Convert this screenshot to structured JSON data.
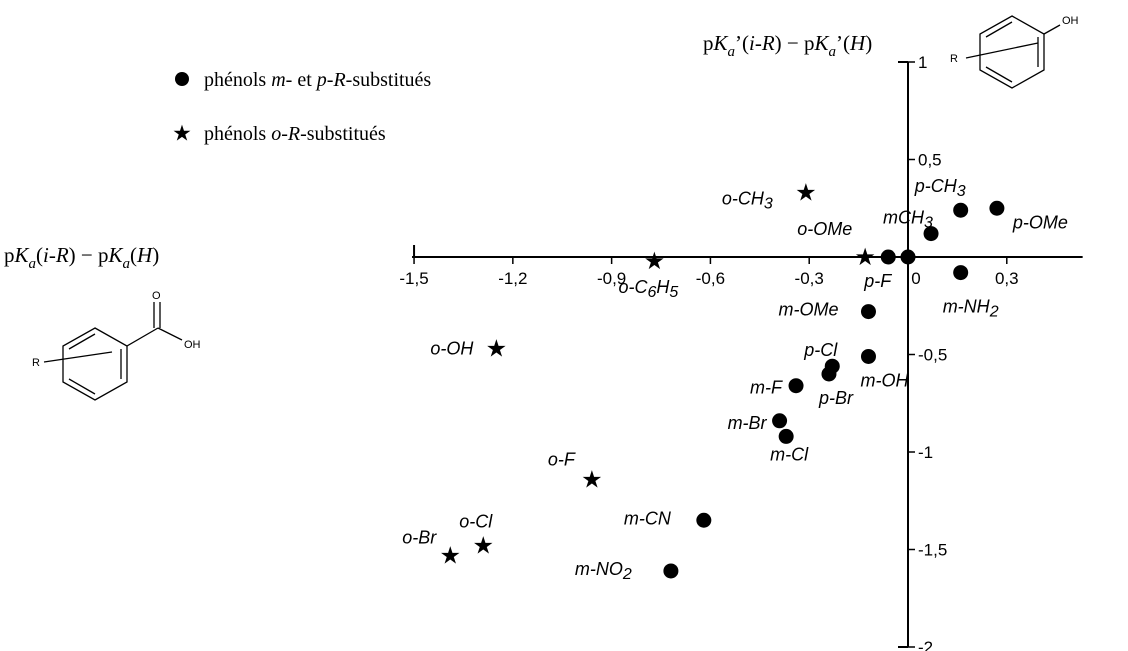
{
  "chart_data": {
    "type": "scatter",
    "title": "",
    "xlabel": "pKa(i-R) − pKa(H)",
    "ylabel": "pKa'(i-R) − pKa'(H)",
    "xlim": [
      -1.5,
      0.5
    ],
    "ylim": [
      -2,
      1
    ],
    "x_ticks": [
      "-1,5",
      "-1,2",
      "-0,9",
      "-0,6",
      "-0,3",
      "0",
      "0,3"
    ],
    "y_ticks": [
      "1",
      "0,5",
      "0",
      "-0,5",
      "-1",
      "-1,5",
      "-2"
    ],
    "legend": {
      "position": "top-left",
      "entries": [
        {
          "marker": "circle",
          "label": "phénols m- et p-R-substitués"
        },
        {
          "marker": "star",
          "label": "phénols o-R-substitués"
        }
      ]
    },
    "series": [
      {
        "name": "phénols m- et p-R-substitués",
        "marker": "circle",
        "points": [
          {
            "label": "p-OMe",
            "x": 0.27,
            "y": 0.25
          },
          {
            "label": "p-CH3",
            "x": 0.16,
            "y": 0.24
          },
          {
            "label": "mCH3",
            "x": 0.07,
            "y": 0.12
          },
          {
            "label": "m-NH2",
            "x": 0.16,
            "y": -0.08
          },
          {
            "label": "0",
            "x": 0.0,
            "y": 0.0
          },
          {
            "label": "p-F",
            "x": -0.06,
            "y": 0.0
          },
          {
            "label": "m-OMe",
            "x": -0.12,
            "y": -0.28
          },
          {
            "label": "m-OH",
            "x": -0.12,
            "y": -0.51
          },
          {
            "label": "p-Cl",
            "x": -0.23,
            "y": -0.56
          },
          {
            "label": "p-Br",
            "x": -0.24,
            "y": -0.6
          },
          {
            "label": "m-F",
            "x": -0.34,
            "y": -0.66
          },
          {
            "label": "m-Br",
            "x": -0.39,
            "y": -0.84
          },
          {
            "label": "m-Cl",
            "x": -0.37,
            "y": -0.92
          },
          {
            "label": "m-CN",
            "x": -0.62,
            "y": -1.35
          },
          {
            "label": "m-NO2",
            "x": -0.72,
            "y": -1.61
          }
        ]
      },
      {
        "name": "phénols o-R-substitués",
        "marker": "star",
        "points": [
          {
            "label": "o-CH3",
            "x": -0.31,
            "y": 0.33
          },
          {
            "label": "o-OMe",
            "x": -0.13,
            "y": 0.0
          },
          {
            "label": "o-C6H5",
            "x": -0.77,
            "y": -0.02
          },
          {
            "label": "o-OH",
            "x": -1.25,
            "y": -0.47
          },
          {
            "label": "o-F",
            "x": -0.96,
            "y": -1.14
          },
          {
            "label": "o-Cl",
            "x": -1.29,
            "y": -1.48
          },
          {
            "label": "o-Br",
            "x": -1.39,
            "y": -1.53
          }
        ]
      }
    ]
  }
}
